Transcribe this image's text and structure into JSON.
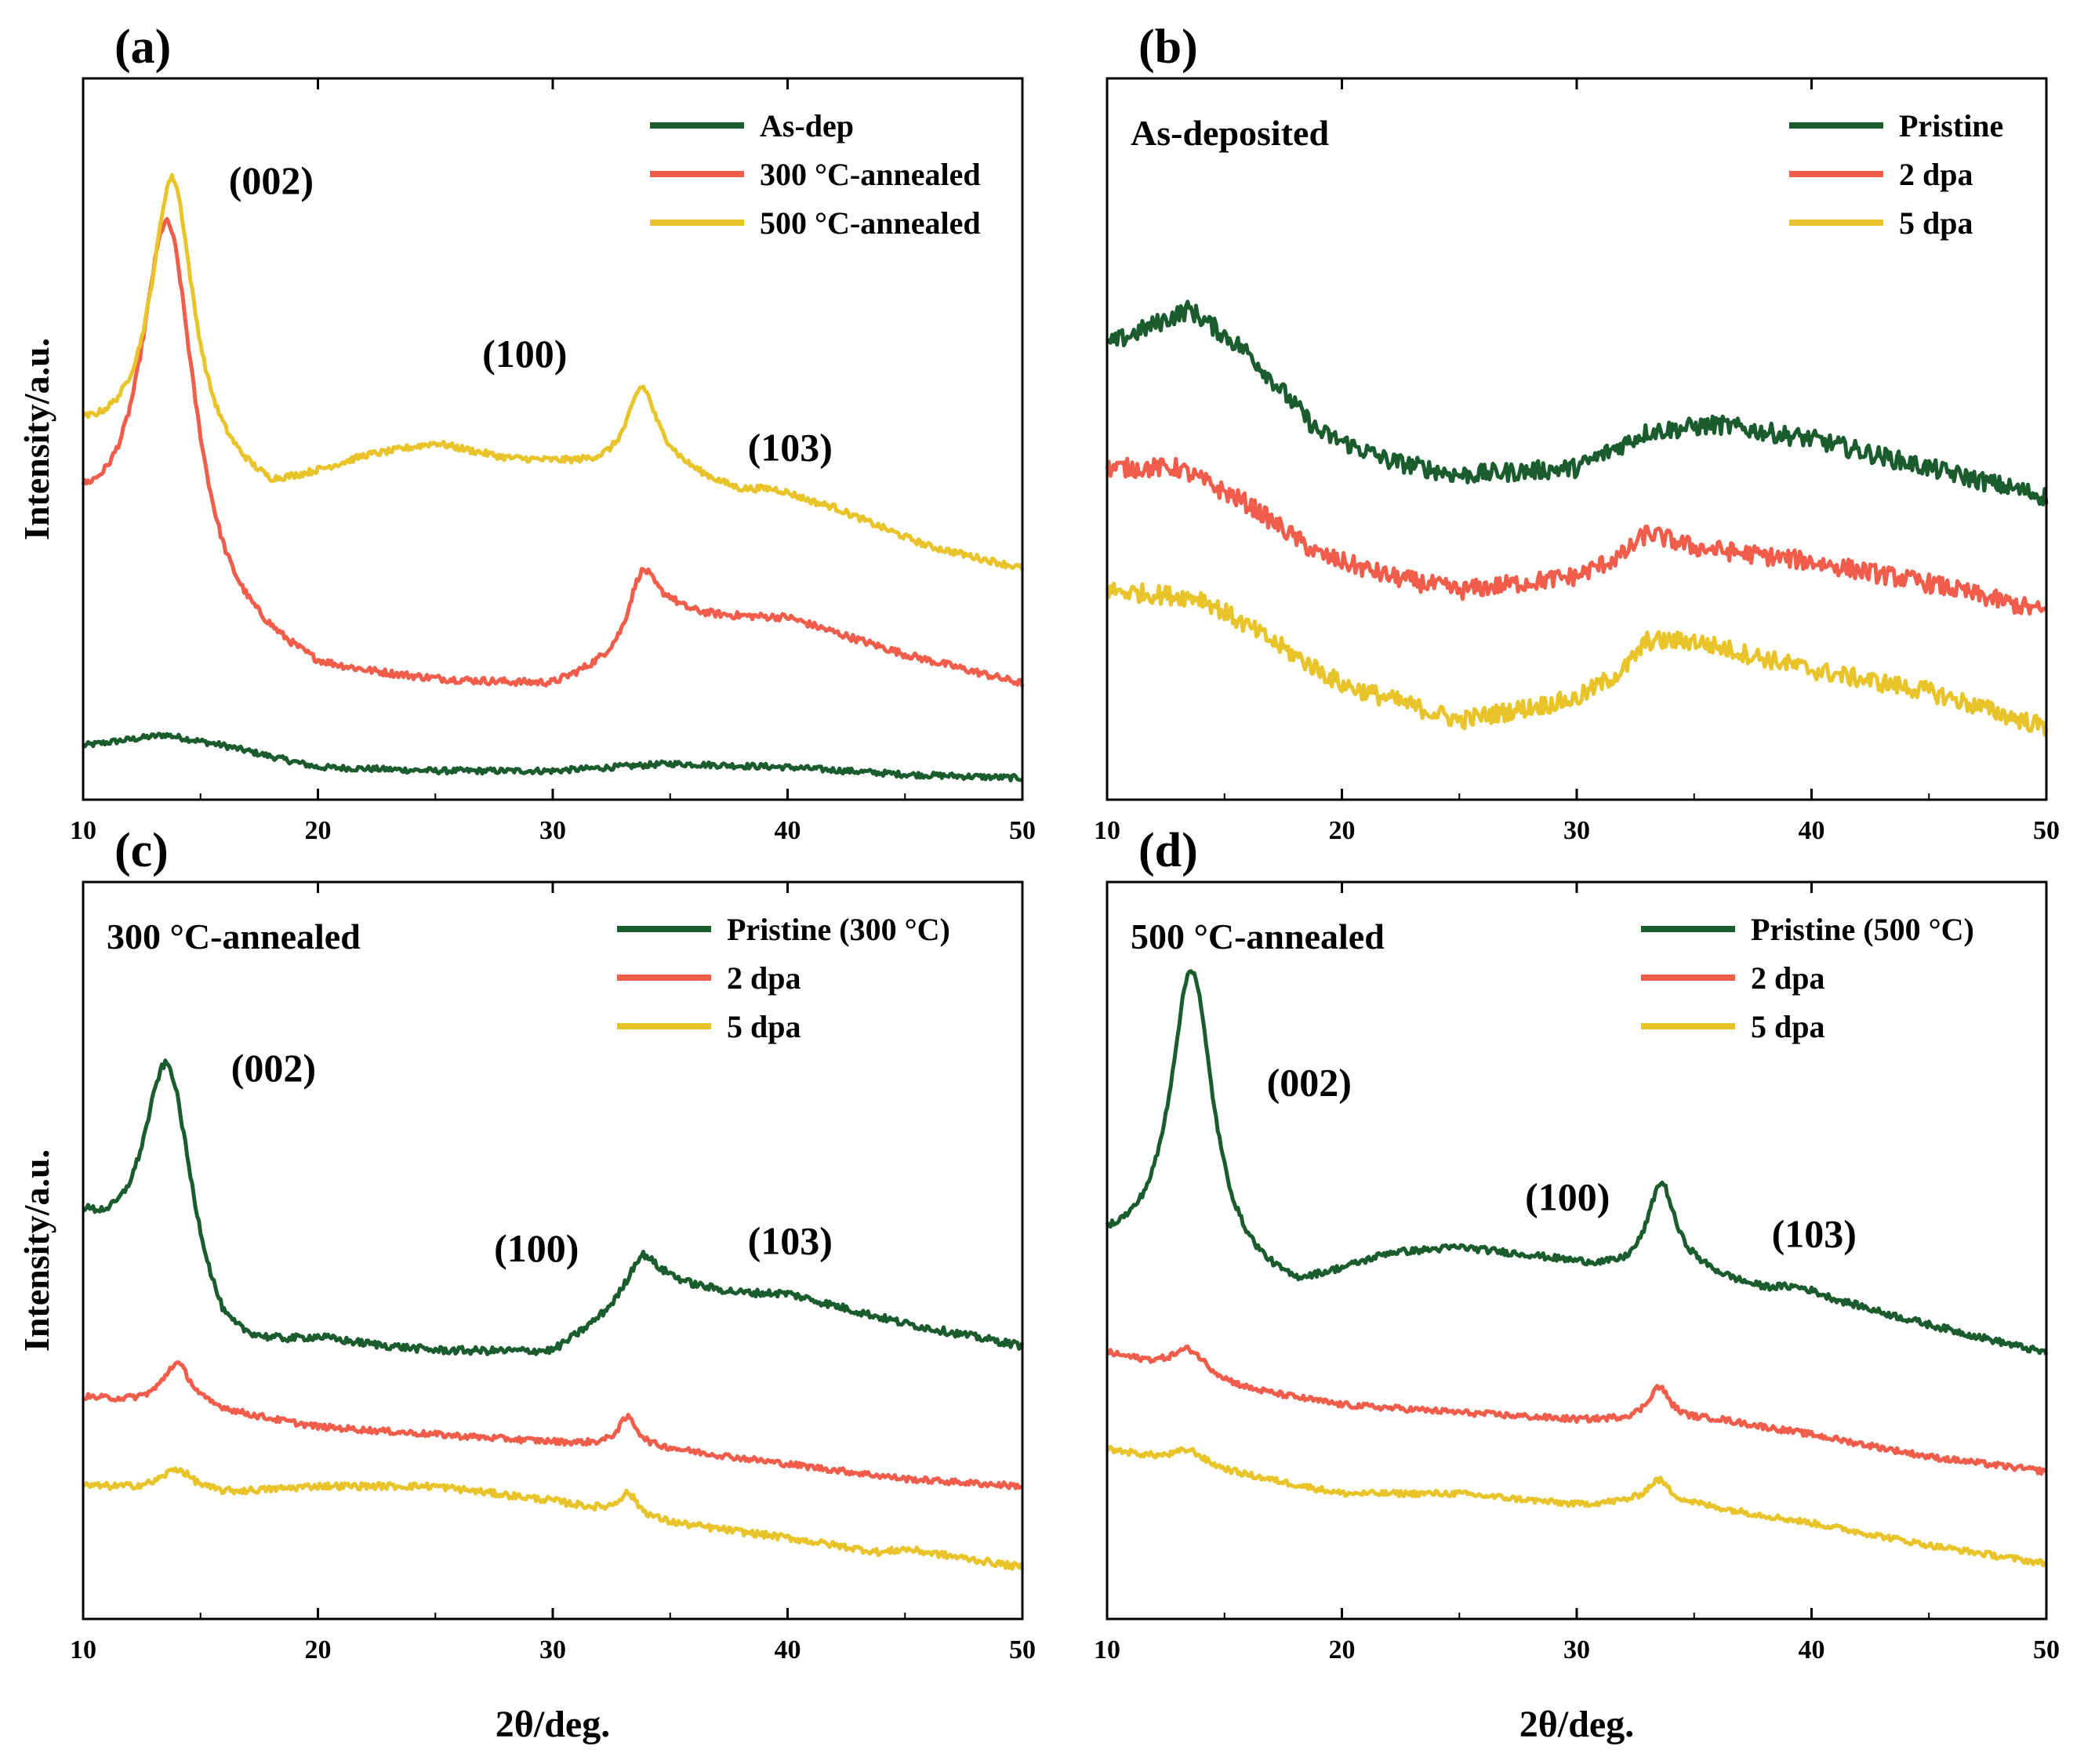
{
  "colors": {
    "green": "#1a5c2e",
    "red": "#f25c4a",
    "yellow": "#e8c42a",
    "axis": "#000000"
  },
  "y_axis_label": "Intensity/a.u.",
  "x_axis_label": "2θ/deg.",
  "chart_data": [
    {
      "panel": "(a)",
      "type": "line",
      "title": "",
      "xlabel": "",
      "ylabel": "Intensity/a.u.",
      "xlim": [
        10,
        50
      ],
      "ylim": [
        0,
        100
      ],
      "xticks": [
        "10",
        "20",
        "30",
        "40",
        "50"
      ],
      "legend": "top-right",
      "series": [
        {
          "name": "As-dep",
          "color": "#1a5c2e",
          "noise": 0.4,
          "base": [
            [
              10,
              7.5
            ],
            [
              13.5,
              9
            ],
            [
              16,
              7.5
            ],
            [
              20,
              4.5
            ],
            [
              25,
              4
            ],
            [
              30,
              4
            ],
            [
              35,
              5
            ],
            [
              40,
              4.5
            ],
            [
              45,
              3.5
            ],
            [
              50,
              3
            ]
          ],
          "peaks": []
        },
        {
          "name": "300 °C-annealed",
          "color": "#f25c4a",
          "noise": 0.5,
          "base": [
            [
              10,
              37
            ],
            [
              16,
              22
            ],
            [
              20,
              17
            ],
            [
              25,
              16
            ],
            [
              30,
              15.5
            ],
            [
              33,
              19
            ],
            [
              35,
              25
            ],
            [
              38,
              25
            ],
            [
              40,
              25
            ],
            [
              45,
              20
            ],
            [
              50,
              16
            ]
          ],
          "peaks": [
            [
              13.6,
              52,
              1.4
            ],
            [
              33.8,
              10,
              0.8
            ]
          ]
        },
        {
          "name": "500 °C-annealed",
          "color": "#e8c42a",
          "noise": 0.45,
          "base": [
            [
              10,
              50
            ],
            [
              15,
              45
            ],
            [
              18,
              42
            ],
            [
              22,
              47
            ],
            [
              25,
              49
            ],
            [
              28,
              47
            ],
            [
              32,
              46
            ],
            [
              35,
              46
            ],
            [
              38,
              42
            ],
            [
              42,
              40
            ],
            [
              46,
              35
            ],
            [
              50,
              32
            ]
          ],
          "peaks": [
            [
              13.8,
              40,
              1.1
            ],
            [
              33.8,
              11,
              0.75
            ],
            [
              39.5,
              1.5,
              1.5
            ]
          ]
        }
      ],
      "annotations": [
        {
          "text": "(002)",
          "x": 16.2,
          "y": 84
        },
        {
          "text": "(100)",
          "x": 27,
          "y": 60
        },
        {
          "text": "(103)",
          "x": 38.3,
          "y": 47
        }
      ]
    },
    {
      "panel": "(b)",
      "type": "line",
      "title": "As-deposited",
      "xlabel": "",
      "ylabel": "",
      "xlim": [
        10,
        50
      ],
      "ylim": [
        0,
        100
      ],
      "xticks": [
        "10",
        "20",
        "30",
        "40",
        "50"
      ],
      "legend": "top-right",
      "series": [
        {
          "name": "Pristine",
          "color": "#1a5c2e",
          "noise": 1.3,
          "base": [
            [
              10,
              63
            ],
            [
              13.5,
              68
            ],
            [
              16,
              62
            ],
            [
              19,
              51
            ],
            [
              22,
              47
            ],
            [
              25,
              45
            ],
            [
              30,
              46
            ],
            [
              33,
              51
            ],
            [
              36,
              52
            ],
            [
              40,
              50
            ],
            [
              45,
              46
            ],
            [
              50,
              42
            ]
          ],
          "peaks": []
        },
        {
          "name": "2 dpa",
          "color": "#f25c4a",
          "noise": 1.3,
          "base": [
            [
              10,
              46
            ],
            [
              13,
              46
            ],
            [
              16,
              41
            ],
            [
              19,
              34
            ],
            [
              22,
              31
            ],
            [
              25,
              29
            ],
            [
              30,
              31
            ],
            [
              32,
              34
            ],
            [
              33,
              37
            ],
            [
              35,
              35
            ],
            [
              40,
              33
            ],
            [
              45,
              30
            ],
            [
              50,
              26
            ]
          ],
          "peaks": []
        },
        {
          "name": "5 dpa",
          "color": "#e8c42a",
          "noise": 1.3,
          "base": [
            [
              10,
              29
            ],
            [
              14,
              28
            ],
            [
              17,
              22
            ],
            [
              20,
              16
            ],
            [
              25,
              11
            ],
            [
              30,
              14
            ],
            [
              32,
              18
            ],
            [
              33,
              22
            ],
            [
              35,
              22
            ],
            [
              40,
              18
            ],
            [
              45,
              15
            ],
            [
              50,
              10
            ]
          ],
          "peaks": []
        }
      ],
      "annotations": []
    },
    {
      "panel": "(c)",
      "type": "line",
      "title": "300 °C-annealed",
      "xlabel": "2θ/deg.",
      "ylabel": "Intensity/a.u.",
      "xlim": [
        10,
        50
      ],
      "ylim": [
        0,
        100
      ],
      "xticks": [
        "10",
        "20",
        "30",
        "40",
        "50"
      ],
      "legend": "top-right",
      "series": [
        {
          "name": "Pristine (300 °C)",
          "color": "#1a5c2e",
          "noise": 0.5,
          "base": [
            [
              10,
              52
            ],
            [
              16,
              34
            ],
            [
              20,
              37
            ],
            [
              25,
              36
            ],
            [
              30,
              36
            ],
            [
              33,
              42
            ],
            [
              35,
              45
            ],
            [
              38,
              44
            ],
            [
              40,
              44
            ],
            [
              45,
              40
            ],
            [
              50,
              37
            ]
          ],
          "peaks": [
            [
              13.6,
              34,
              1.3
            ],
            [
              33.8,
              6,
              0.8
            ]
          ]
        },
        {
          "name": "2 dpa",
          "color": "#f25c4a",
          "noise": 0.4,
          "base": [
            [
              10,
              30
            ],
            [
              16,
              28
            ],
            [
              20,
              26
            ],
            [
              25,
              25
            ],
            [
              30,
              24
            ],
            [
              35,
              23
            ],
            [
              40,
              21
            ],
            [
              45,
              19
            ],
            [
              50,
              18
            ]
          ],
          "peaks": [
            [
              14,
              6,
              0.75
            ],
            [
              33.2,
              4,
              0.5
            ]
          ]
        },
        {
          "name": "5 dpa",
          "color": "#e8c42a",
          "noise": 0.45,
          "base": [
            [
              10,
              18
            ],
            [
              16,
              17
            ],
            [
              20,
              18
            ],
            [
              25,
              18
            ],
            [
              30,
              16
            ],
            [
              35,
              13
            ],
            [
              40,
              11
            ],
            [
              44,
              9
            ],
            [
              45,
              9.5
            ],
            [
              50,
              7
            ]
          ],
          "peaks": [
            [
              14,
              3,
              0.8
            ],
            [
              33.2,
              3,
              0.5
            ]
          ]
        }
      ],
      "annotations": [
        {
          "text": "(002)",
          "x": 16.3,
          "y": 73
        },
        {
          "text": "(100)",
          "x": 27.5,
          "y": 48.5
        },
        {
          "text": "(103)",
          "x": 38.3,
          "y": 49.5
        }
      ]
    },
    {
      "panel": "(d)",
      "type": "line",
      "title": "500 °C-annealed",
      "xlabel": "2θ/deg.",
      "ylabel": "",
      "xlim": [
        10,
        50
      ],
      "ylim": [
        0,
        100
      ],
      "xticks": [
        "10",
        "20",
        "30",
        "40",
        "50"
      ],
      "legend": "top-right",
      "series": [
        {
          "name": "Pristine (500 °C)",
          "color": "#1a5c2e",
          "noise": 0.45,
          "base": [
            [
              10,
              50
            ],
            [
              15,
              46
            ],
            [
              18,
              44
            ],
            [
              22,
              49
            ],
            [
              25,
              50
            ],
            [
              28,
              49
            ],
            [
              32,
              47
            ],
            [
              35,
              47
            ],
            [
              38,
              44
            ],
            [
              42,
              42
            ],
            [
              46,
              39
            ],
            [
              50,
              36
            ]
          ],
          "peaks": [
            [
              13.6,
              41,
              1.1
            ],
            [
              33.6,
              12,
              0.7
            ],
            [
              39.5,
              1.5,
              1.5
            ]
          ]
        },
        {
          "name": "2 dpa",
          "color": "#f25c4a",
          "noise": 0.4,
          "base": [
            [
              10,
              36
            ],
            [
              16,
              31
            ],
            [
              20,
              29
            ],
            [
              25,
              28
            ],
            [
              30,
              27
            ],
            [
              33,
              27
            ],
            [
              36,
              27
            ],
            [
              40,
              25
            ],
            [
              45,
              22
            ],
            [
              50,
              20
            ]
          ],
          "peaks": [
            [
              13.5,
              3.5,
              0.9
            ],
            [
              33.5,
              4.5,
              0.55
            ]
          ]
        },
        {
          "name": "5 dpa",
          "color": "#e8c42a",
          "noise": 0.4,
          "base": [
            [
              10,
              23
            ],
            [
              15,
              20
            ],
            [
              20,
              17
            ],
            [
              25,
              17
            ],
            [
              30,
              15.5
            ],
            [
              33,
              16
            ],
            [
              35,
              15.5
            ],
            [
              40,
              13
            ],
            [
              45,
              10
            ],
            [
              50,
              7.5
            ]
          ],
          "peaks": [
            [
              13.5,
              2,
              0.8
            ],
            [
              33.5,
              3,
              0.55
            ]
          ]
        }
      ],
      "annotations": [
        {
          "text": "(002)",
          "x": 16.8,
          "y": 71
        },
        {
          "text": "(100)",
          "x": 27.8,
          "y": 55.5
        },
        {
          "text": "(103)",
          "x": 38.3,
          "y": 50.5
        }
      ]
    }
  ]
}
